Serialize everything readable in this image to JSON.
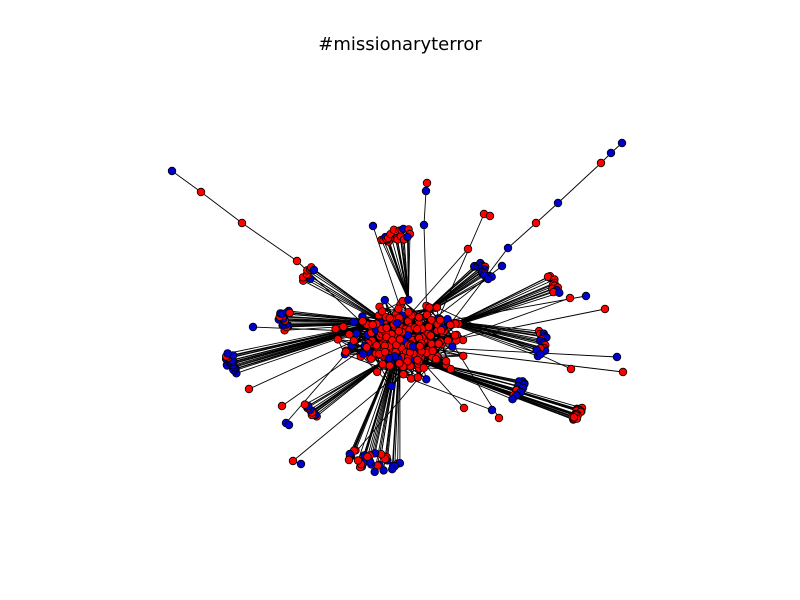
{
  "figure": {
    "title": "#missionaryterror"
  },
  "colors": {
    "background": "#ffffff",
    "edge": "#000000",
    "node_outline": "#000000",
    "node_red": "#ff0000",
    "node_blue": "#0000cc"
  },
  "graph": {
    "type": "network",
    "node_colors": [
      "red",
      "blue"
    ]
  }
}
